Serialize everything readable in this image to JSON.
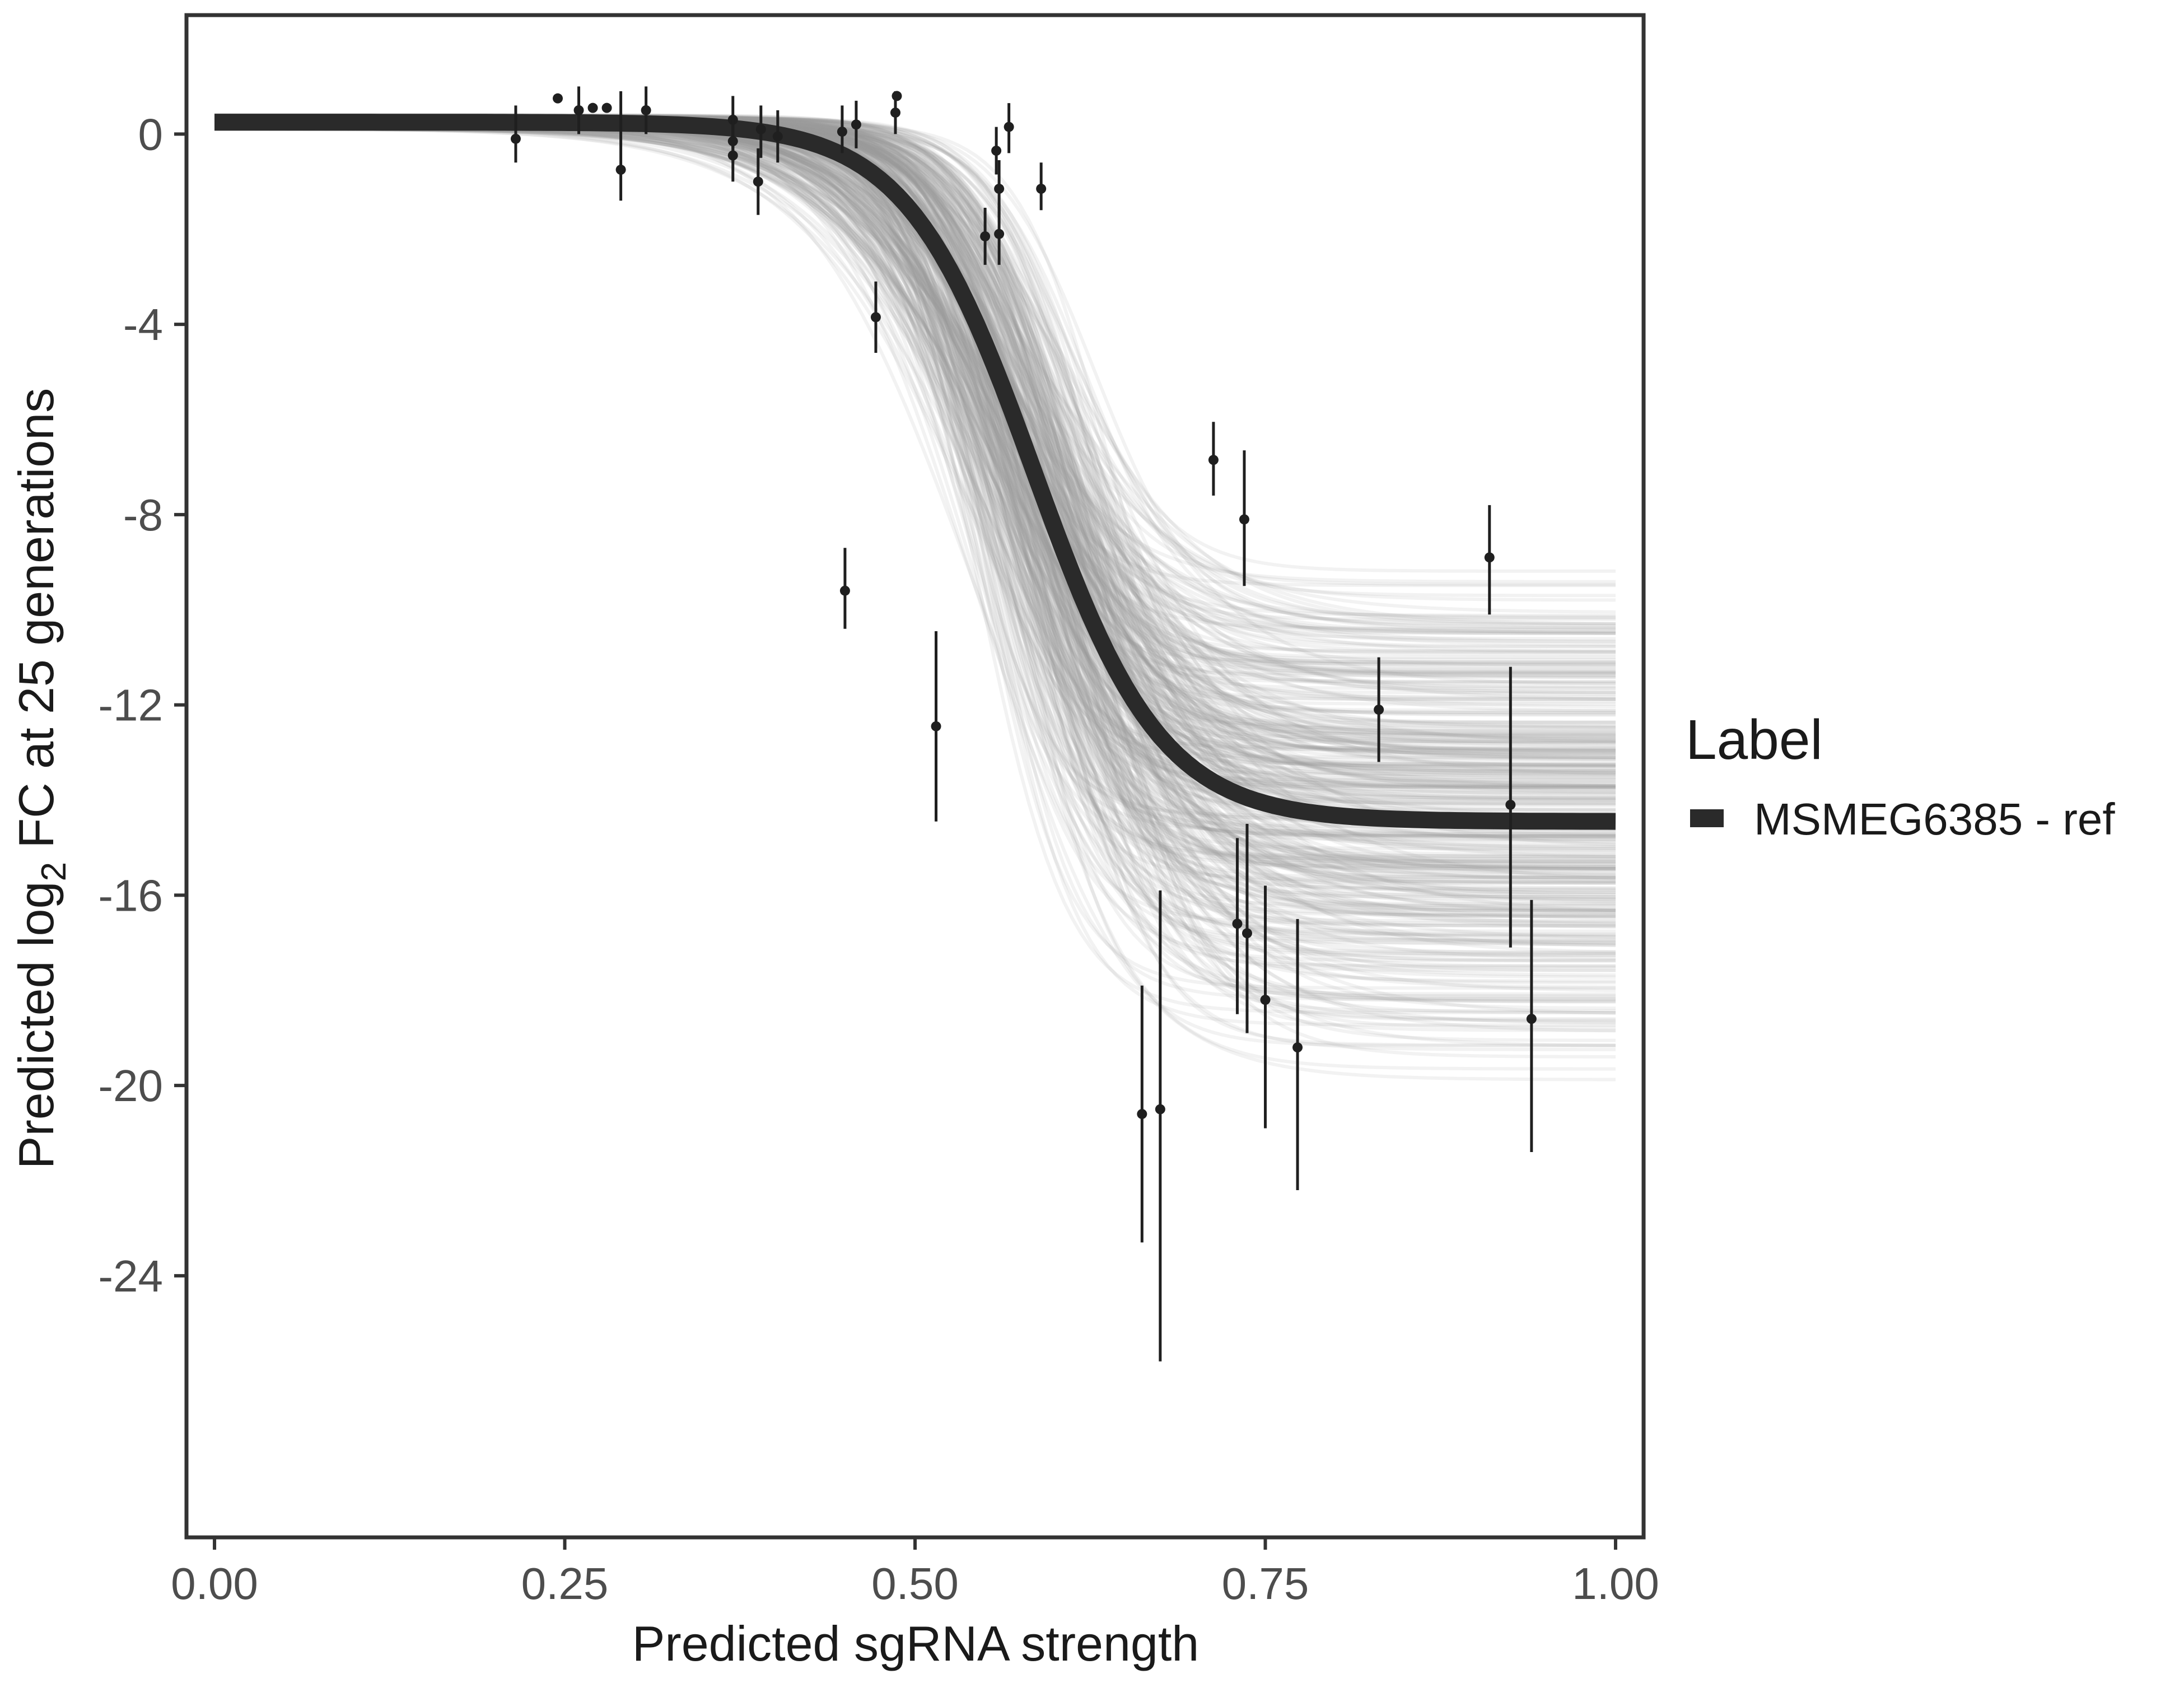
{
  "chart_data": {
    "type": "line",
    "xlabel": "Predicted sgRNA strength",
    "ylabel_prefix": "Predicted  log",
    "ylabel_subscript": "2",
    "ylabel_suffix": " FC at 25 generations",
    "xlim": [
      -0.02,
      1.02
    ],
    "ylim": [
      -29.5,
      2.5
    ],
    "x_ticks": [
      0,
      0.25,
      0.5,
      0.75,
      1
    ],
    "x_tick_labels": [
      "0.00",
      "0.25",
      "0.50",
      "0.75",
      "1.00"
    ],
    "y_ticks": [
      0,
      -4,
      -8,
      -12,
      -16,
      -20,
      -24
    ],
    "y_tick_labels": [
      "0",
      "-4",
      "-8",
      "-12",
      "-16",
      "-20",
      "-24"
    ],
    "grid": false,
    "legend": {
      "title": "Label",
      "position": "right",
      "entries": [
        {
          "label": "MSMEG6385 - ref",
          "color": "#2a2a2a"
        }
      ]
    },
    "fit_curve": {
      "name": "MSMEG6385 - ref",
      "color": "#2a2a2a",
      "top": 0.25,
      "bottom": -14.45,
      "midpoint": 0.585,
      "slope": 22,
      "x_range": [
        0,
        1
      ]
    },
    "posterior_draws": {
      "color": "#9e9e9e",
      "opacity": 0.13,
      "bottom_range": [
        -20,
        -8.8
      ],
      "midpoint_range": [
        0.52,
        0.64
      ],
      "slope_range": [
        14,
        34
      ]
    },
    "points": [
      {
        "x": 0.215,
        "y": -0.1,
        "lo": -0.6,
        "hi": 0.6
      },
      {
        "x": 0.245,
        "y": 0.75
      },
      {
        "x": 0.26,
        "y": 0.5,
        "lo": 0.0,
        "hi": 1.0
      },
      {
        "x": 0.27,
        "y": 0.55
      },
      {
        "x": 0.28,
        "y": 0.55
      },
      {
        "x": 0.29,
        "y": -0.75,
        "lo": -1.4,
        "hi": 0.9
      },
      {
        "x": 0.308,
        "y": 0.5,
        "lo": 0.0,
        "hi": 1.0
      },
      {
        "x": 0.37,
        "y": 0.3,
        "lo": -0.3,
        "hi": 0.8
      },
      {
        "x": 0.37,
        "y": -0.45,
        "lo": -1.0,
        "hi": 0.3
      },
      {
        "x": 0.37,
        "y": -0.15,
        "lo": -0.6,
        "hi": 0.4
      },
      {
        "x": 0.388,
        "y": -1.0,
        "lo": -1.7,
        "hi": -0.3
      },
      {
        "x": 0.39,
        "y": 0.1,
        "lo": -0.5,
        "hi": 0.6
      },
      {
        "x": 0.402,
        "y": -0.05,
        "lo": -0.6,
        "hi": 0.5
      },
      {
        "x": 0.448,
        "y": 0.05,
        "lo": -0.4,
        "hi": 0.6
      },
      {
        "x": 0.458,
        "y": 0.2,
        "lo": -0.3,
        "hi": 0.7
      },
      {
        "x": 0.472,
        "y": -3.85,
        "lo": -4.6,
        "hi": -3.1
      },
      {
        "x": 0.486,
        "y": 0.45,
        "lo": 0.0,
        "hi": 0.9
      },
      {
        "x": 0.487,
        "y": 0.8
      },
      {
        "x": 0.45,
        "y": -9.6,
        "lo": -10.4,
        "hi": -8.7
      },
      {
        "x": 0.515,
        "y": -12.45,
        "lo": -14.45,
        "hi": -10.45
      },
      {
        "x": 0.55,
        "y": -2.15,
        "lo": -2.75,
        "hi": -1.55
      },
      {
        "x": 0.558,
        "y": -0.35,
        "lo": -0.85,
        "hi": 0.15
      },
      {
        "x": 0.56,
        "y": -1.15,
        "lo": -1.75,
        "hi": -0.55
      },
      {
        "x": 0.56,
        "y": -2.1,
        "lo": -2.75,
        "hi": -1.45
      },
      {
        "x": 0.567,
        "y": 0.15,
        "lo": -0.4,
        "hi": 0.65
      },
      {
        "x": 0.59,
        "y": -1.15,
        "lo": -1.6,
        "hi": -0.6
      },
      {
        "x": 0.662,
        "y": -20.6,
        "lo": -23.3,
        "hi": -17.9
      },
      {
        "x": 0.675,
        "y": -20.5,
        "lo": -25.8,
        "hi": -15.9
      },
      {
        "x": 0.713,
        "y": -6.85,
        "lo": -7.6,
        "hi": -6.05
      },
      {
        "x": 0.73,
        "y": -16.6,
        "lo": -18.5,
        "hi": -14.8
      },
      {
        "x": 0.735,
        "y": -8.1,
        "lo": -9.5,
        "hi": -6.65
      },
      {
        "x": 0.737,
        "y": -16.8,
        "lo": -18.9,
        "hi": -14.5
      },
      {
        "x": 0.75,
        "y": -18.2,
        "lo": -20.9,
        "hi": -15.8
      },
      {
        "x": 0.773,
        "y": -19.2,
        "lo": -22.2,
        "hi": -16.5
      },
      {
        "x": 0.831,
        "y": -12.1,
        "lo": -13.2,
        "hi": -11.0
      },
      {
        "x": 0.91,
        "y": -8.9,
        "lo": -10.1,
        "hi": -7.8
      },
      {
        "x": 0.925,
        "y": -14.1,
        "lo": -17.1,
        "hi": -11.2
      },
      {
        "x": 0.94,
        "y": -18.6,
        "lo": -21.4,
        "hi": -16.1
      }
    ]
  }
}
